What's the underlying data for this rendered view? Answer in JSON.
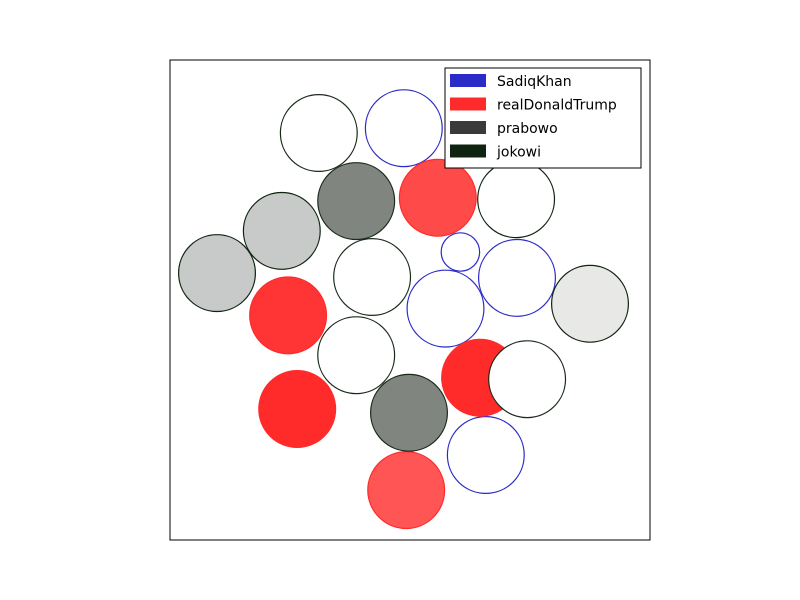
{
  "chart_data": {
    "type": "scatter",
    "title": "",
    "xlabel": "",
    "ylabel": "",
    "grid": false,
    "axes_ticks": false,
    "legend": {
      "placement": "top-right",
      "entries": [
        {
          "label": "SadiqKhan",
          "color": "#2b2bc8"
        },
        {
          "label": "realDonaldTrump",
          "color": "#ff2a2a"
        },
        {
          "label": "prabowo",
          "color": "#3a3a3a"
        },
        {
          "label": "jokowi",
          "color": "#0f2410"
        }
      ]
    },
    "series": [
      {
        "name": "SadiqKhan",
        "edge_color": "#2b2bc8",
        "points": [
          {
            "x": 0.487,
            "y": 0.858,
            "r": 0.08,
            "fill": "#ffffff",
            "alpha": 1.0
          },
          {
            "x": 0.605,
            "y": 0.6,
            "r": 0.04,
            "fill": "#ffffff",
            "alpha": 1.0
          },
          {
            "x": 0.723,
            "y": 0.546,
            "r": 0.08,
            "fill": "#ffffff",
            "alpha": 1.0
          },
          {
            "x": 0.574,
            "y": 0.482,
            "r": 0.08,
            "fill": "#ffffff",
            "alpha": 1.0
          },
          {
            "x": 0.658,
            "y": 0.177,
            "r": 0.08,
            "fill": "#ffffff",
            "alpha": 1.0
          }
        ]
      },
      {
        "name": "realDonaldTrump",
        "edge_color": "#ff2a2a",
        "points": [
          {
            "x": 0.558,
            "y": 0.713,
            "r": 0.08,
            "fill": "#ff2a2a",
            "alpha": 0.85
          },
          {
            "x": 0.246,
            "y": 0.468,
            "r": 0.08,
            "fill": "#ff2a2a",
            "alpha": 0.95
          },
          {
            "x": 0.646,
            "y": 0.338,
            "r": 0.08,
            "fill": "#ff2a2a",
            "alpha": 1.0
          },
          {
            "x": 0.265,
            "y": 0.273,
            "r": 0.08,
            "fill": "#ff2a2a",
            "alpha": 1.0
          },
          {
            "x": 0.492,
            "y": 0.104,
            "r": 0.08,
            "fill": "#ff2a2a",
            "alpha": 0.8
          }
        ]
      },
      {
        "name": "prabowo",
        "edge_color": "#1a2b1a",
        "points": [
          {
            "x": 0.31,
            "y": 0.848,
            "r": 0.08,
            "fill": "#ffffff",
            "alpha": 1.0
          },
          {
            "x": 0.388,
            "y": 0.706,
            "r": 0.08,
            "fill": "#808580",
            "alpha": 1.0
          },
          {
            "x": 0.421,
            "y": 0.548,
            "r": 0.08,
            "fill": "#ffffff",
            "alpha": 1.0
          },
          {
            "x": 0.388,
            "y": 0.385,
            "r": 0.08,
            "fill": "#ffffff",
            "alpha": 1.0
          },
          {
            "x": 0.744,
            "y": 0.335,
            "r": 0.08,
            "fill": "#ffffff",
            "alpha": 1.0
          },
          {
            "x": 0.498,
            "y": 0.265,
            "r": 0.08,
            "fill": "#808580",
            "alpha": 1.0
          }
        ]
      },
      {
        "name": "jokowi",
        "edge_color": "#0f2410",
        "points": [
          {
            "x": 0.721,
            "y": 0.71,
            "r": 0.08,
            "fill": "#ffffff",
            "alpha": 1.0
          },
          {
            "x": 0.233,
            "y": 0.644,
            "r": 0.08,
            "fill": "#c8c9c9",
            "alpha": 1.0
          },
          {
            "x": 0.098,
            "y": 0.556,
            "r": 0.08,
            "fill": "#c8c9c9",
            "alpha": 1.0
          },
          {
            "x": 0.875,
            "y": 0.492,
            "r": 0.08,
            "fill": "#e8e8e6",
            "alpha": 1.0
          }
        ]
      }
    ],
    "xlim": [
      0,
      1
    ],
    "ylim": [
      0,
      1
    ]
  }
}
